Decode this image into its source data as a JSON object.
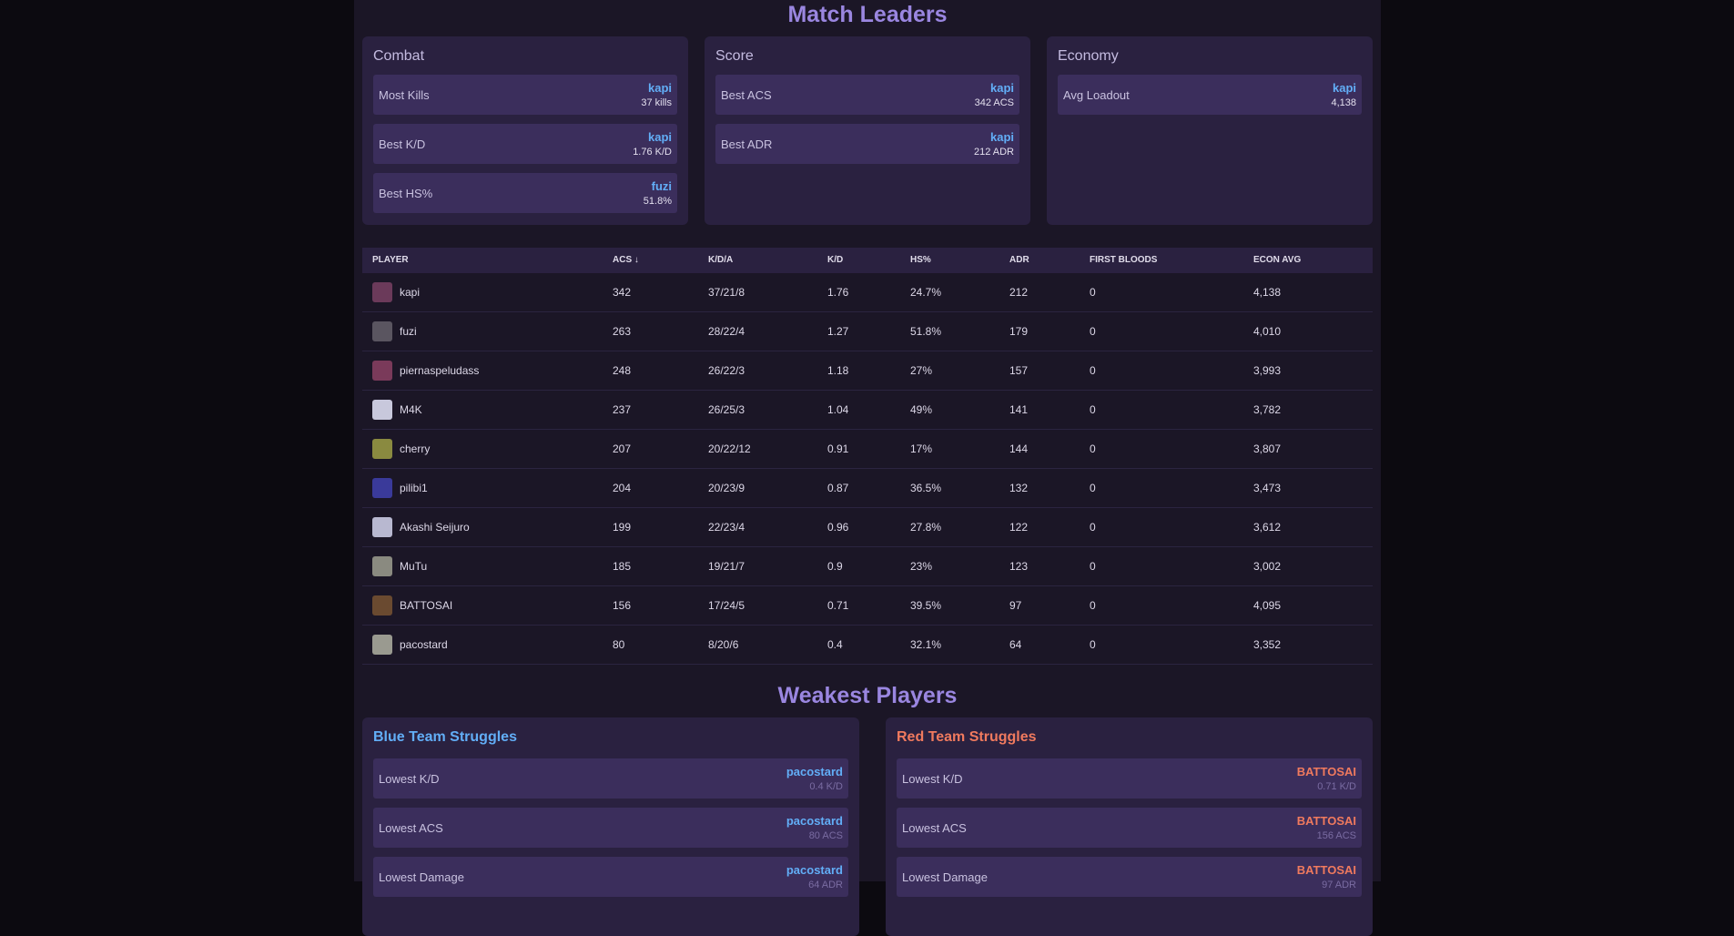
{
  "leaders": {
    "title": "Match Leaders",
    "sections": [
      {
        "title": "Combat",
        "items": [
          {
            "label": "Most Kills",
            "player": "kapi",
            "value": "37 kills"
          },
          {
            "label": "Best K/D",
            "player": "kapi",
            "value": "1.76 K/D"
          },
          {
            "label": "Best HS%",
            "player": "fuzi",
            "value": "51.8%"
          }
        ]
      },
      {
        "title": "Score",
        "items": [
          {
            "label": "Best ACS",
            "player": "kapi",
            "value": "342 ACS"
          },
          {
            "label": "Best ADR",
            "player": "kapi",
            "value": "212 ADR"
          }
        ]
      },
      {
        "title": "Economy",
        "items": [
          {
            "label": "Avg Loadout",
            "player": "kapi",
            "value": "4,138"
          }
        ]
      }
    ]
  },
  "table": {
    "columns": [
      "PLAYER",
      "ACS ↓",
      "K/D/A",
      "K/D",
      "HS%",
      "ADR",
      "FIRST BLOODS",
      "ECON AVG"
    ],
    "rows": [
      {
        "team": "blue",
        "cells": [
          "kapi",
          "342",
          "37/21/8",
          "1.76",
          "24.7%",
          "212",
          "0",
          "4,138"
        ]
      },
      {
        "team": "blue",
        "cells": [
          "fuzi",
          "263",
          "28/22/4",
          "1.27",
          "51.8%",
          "179",
          "0",
          "4,010"
        ]
      },
      {
        "team": "red",
        "cells": [
          "piernaspeludass",
          "248",
          "26/22/3",
          "1.18",
          "27%",
          "157",
          "0",
          "3,993"
        ]
      },
      {
        "team": "red",
        "cells": [
          "M4K",
          "237",
          "26/25/3",
          "1.04",
          "49%",
          "141",
          "0",
          "3,782"
        ]
      },
      {
        "team": "blue",
        "cells": [
          "cherry",
          "207",
          "20/22/12",
          "0.91",
          "17%",
          "144",
          "0",
          "3,807"
        ]
      },
      {
        "team": "red",
        "cells": [
          "pilibi1",
          "204",
          "20/23/9",
          "0.87",
          "36.5%",
          "132",
          "0",
          "3,473"
        ]
      },
      {
        "team": "blue",
        "cells": [
          "Akashi Seijuro",
          "199",
          "22/23/4",
          "0.96",
          "27.8%",
          "122",
          "0",
          "3,612"
        ]
      },
      {
        "team": "red",
        "cells": [
          "MuTu",
          "185",
          "19/21/7",
          "0.9",
          "23%",
          "123",
          "0",
          "3,002"
        ]
      },
      {
        "team": "red",
        "cells": [
          "BATTOSAI",
          "156",
          "17/24/5",
          "0.71",
          "39.5%",
          "97",
          "0",
          "4,095"
        ]
      },
      {
        "team": "blue",
        "cells": [
          "pacostard",
          "80",
          "8/20/6",
          "0.4",
          "32.1%",
          "64",
          "0",
          "3,352"
        ]
      }
    ]
  },
  "weakest": {
    "title": "Weakest Players",
    "teams": [
      {
        "title": "Blue Team Struggles",
        "team": "blue",
        "items": [
          {
            "label": "Lowest K/D",
            "player": "pacostard",
            "value": "0.4 K/D"
          },
          {
            "label": "Lowest ACS",
            "player": "pacostard",
            "value": "80 ACS"
          },
          {
            "label": "Lowest Damage",
            "player": "pacostard",
            "value": "64 ADR"
          }
        ]
      },
      {
        "title": "Red Team Struggles",
        "team": "red",
        "items": [
          {
            "label": "Lowest K/D",
            "player": "BATTOSAI",
            "value": "0.71 K/D"
          },
          {
            "label": "Lowest ACS",
            "player": "BATTOSAI",
            "value": "156 ACS"
          },
          {
            "label": "Lowest Damage",
            "player": "BATTOSAI",
            "value": "97 ADR"
          }
        ]
      }
    ]
  }
}
